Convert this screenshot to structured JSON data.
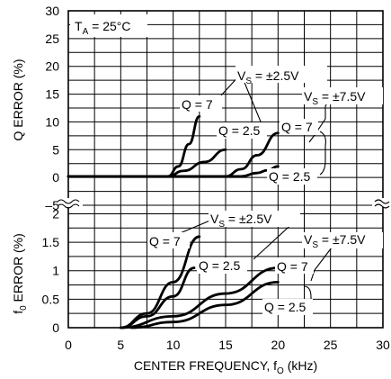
{
  "chart_data": {
    "type": "line",
    "xlabel": {
      "main": "CENTER FREQUENCY, f",
      "sub": "O",
      "unit": " (kHz)"
    },
    "x_ticks": [
      "0",
      "5",
      "10",
      "15",
      "20",
      "25",
      "30"
    ],
    "xlim": [
      0,
      30
    ],
    "grid": true,
    "panels": [
      {
        "name": "q-error",
        "ylabel": "Q ERROR (%)",
        "ylim": [
          -5,
          30
        ],
        "y_ticks": [
          "30",
          "25",
          "20",
          "15",
          "10",
          "5",
          "0",
          "–5"
        ],
        "annotation": {
          "prefix": "T",
          "sub": "A",
          "rest": " = 25°C"
        },
        "labels": {
          "vs_low": {
            "prefix": "V",
            "sub": "S",
            "rest": " = ±2.5V"
          },
          "vs_high": {
            "prefix": "V",
            "sub": "S",
            "rest": " = ±7.5V"
          },
          "q7_left": "Q = 7",
          "q25_left": "Q = 2.5",
          "q7_right": "Q = 7",
          "q25_right": "Q = 2.5"
        },
        "series": [
          {
            "x": [
              0,
              9.5,
              10.5,
              11.5,
              12.5
            ],
            "y": [
              0.2,
              0.2,
              2.0,
              6.0,
              11.0
            ]
          },
          {
            "x": [
              0,
              9.5,
              11,
              13,
              15
            ],
            "y": [
              0.2,
              0.2,
              1.2,
              2.8,
              5.0
            ]
          },
          {
            "x": [
              0,
              15,
              16.5,
              18,
              20
            ],
            "y": [
              0.2,
              0.2,
              1.5,
              4.0,
              8.0
            ]
          },
          {
            "x": [
              0,
              16.5,
              18,
              19,
              20
            ],
            "y": [
              0.2,
              0.2,
              0.8,
              1.3,
              2.0
            ]
          }
        ]
      },
      {
        "name": "f0-error",
        "ylabel": {
          "main": "f",
          "sub": "0",
          "rest": " ERROR (%)"
        },
        "ylim": [
          0,
          2.15
        ],
        "y_ticks": [
          "2",
          "1.5",
          "1",
          "0.5",
          "0"
        ],
        "labels": {
          "vs_low": {
            "prefix": "V",
            "sub": "S",
            "rest": " = ±2.5V"
          },
          "vs_high": {
            "prefix": "V",
            "sub": "S",
            "rest": " = ±7.5V"
          },
          "q7_left": "Q = 7",
          "q25_left": "Q = 2.5",
          "q7_right": "Q = 7",
          "q25_right": "Q = 2.5"
        },
        "series": [
          {
            "x": [
              5,
              7.5,
              10,
              12.5
            ],
            "y": [
              0,
              0.25,
              0.8,
              1.6
            ]
          },
          {
            "x": [
              5,
              7.5,
              10,
              12
            ],
            "y": [
              0,
              0.2,
              0.55,
              1.05
            ]
          },
          {
            "x": [
              5,
              10,
              15,
              20
            ],
            "y": [
              0,
              0.2,
              0.6,
              1.05
            ]
          },
          {
            "x": [
              6,
              10,
              15,
              20
            ],
            "y": [
              0,
              0.1,
              0.4,
              0.8
            ]
          }
        ]
      }
    ]
  }
}
